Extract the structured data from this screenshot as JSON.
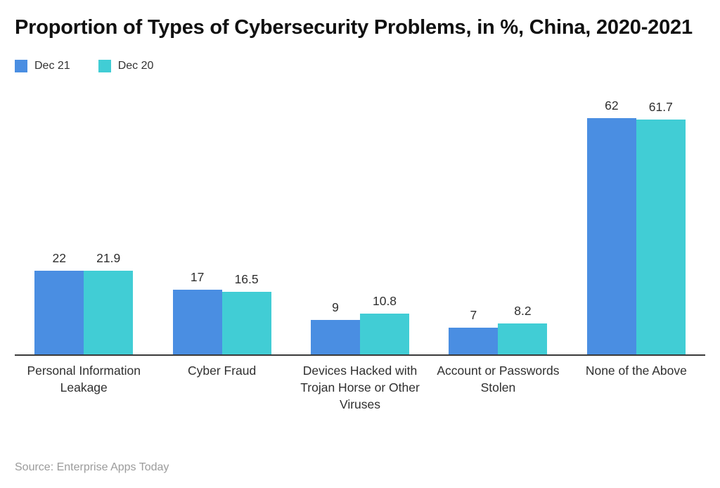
{
  "chart_data": {
    "type": "bar",
    "title": "Proportion of Types of Cybersecurity Problems, in %, China, 2020-2021",
    "categories": [
      "Personal Information Leakage",
      "Cyber Fraud",
      "Devices Hacked with Trojan Horse or Other Viruses",
      "Account or Passwords Stolen",
      "None of the Above"
    ],
    "series": [
      {
        "name": "Dec 21",
        "color": "#4a8ee2",
        "values": [
          22,
          17,
          9,
          7,
          62
        ]
      },
      {
        "name": "Dec 20",
        "color": "#41cdd5",
        "values": [
          21.9,
          16.5,
          10.8,
          8.2,
          61.7
        ]
      }
    ],
    "ylim": [
      0,
      71
    ],
    "grid": false,
    "legend_position": "top-left",
    "value_labels_shown": true,
    "axis_color": "#3a3a3a"
  },
  "footer": {
    "source": "Source: Enterprise Apps Today"
  }
}
